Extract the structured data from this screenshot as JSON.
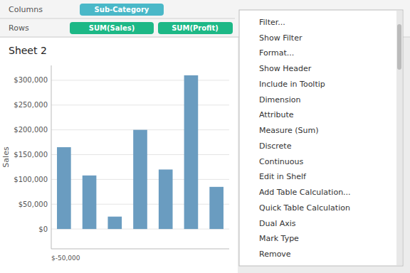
{
  "chart_data": {
    "type": "bar",
    "title": "Sheet 2",
    "ylabel": "Sales",
    "categories": [
      null,
      null,
      null,
      null,
      null,
      null,
      null
    ],
    "values": [
      165000,
      108000,
      25000,
      200000,
      120000,
      310000,
      85000
    ],
    "color": "#6a9cc0",
    "ylim": [
      -40000,
      330000
    ],
    "yticks": [
      {
        "value": 0,
        "label": "$0"
      },
      {
        "value": 50000,
        "label": "$50,000"
      },
      {
        "value": 100000,
        "label": "$100,000"
      },
      {
        "value": 150000,
        "label": "$150,000"
      },
      {
        "value": 200000,
        "label": "$200,000"
      },
      {
        "value": 250000,
        "label": "$250,000"
      },
      {
        "value": 300000,
        "label": "$300,000"
      }
    ],
    "grid": true,
    "tick_labels": "y",
    "annotations": [
      "Columns",
      "Sub-Category",
      "Rows",
      "SUM(Sales)",
      "SUM(Profit)",
      "$-50,000",
      "Filter...",
      "Show Filter",
      "Format...",
      "Show Header",
      "Include in Tooltip",
      "Dimension",
      "Attribute",
      "Measure (Sum)",
      "Discrete",
      "Continuous",
      "Edit in Shelf",
      "Add Table Calculation...",
      "Quick Table Calculation",
      "Dual Axis",
      "Mark Type",
      "Remove"
    ]
  }
}
